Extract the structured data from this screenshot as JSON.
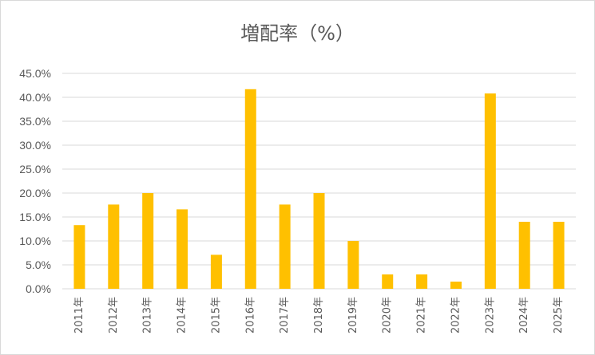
{
  "chart_data": {
    "type": "bar",
    "title": "増配率（%）",
    "categories": [
      "2011年",
      "2012年",
      "2013年",
      "2014年",
      "2015年",
      "2016年",
      "2017年",
      "2018年",
      "2019年",
      "2020年",
      "2021年",
      "2022年",
      "2023年",
      "2024年",
      "2025年"
    ],
    "values": [
      13.3,
      17.6,
      20.0,
      16.6,
      7.1,
      41.7,
      17.6,
      20.0,
      10.0,
      3.0,
      3.0,
      1.5,
      40.8,
      14.0,
      14.0
    ],
    "y_ticks": [
      "0.0%",
      "5.0%",
      "10.0%",
      "15.0%",
      "20.0%",
      "25.0%",
      "30.0%",
      "35.0%",
      "40.0%",
      "45.0%"
    ],
    "ylim": [
      0,
      45
    ],
    "xlabel": "",
    "ylabel": "",
    "grid": true,
    "bar_color": "#ffc000",
    "grid_color": "#d9d9d9",
    "text_color": "#595959"
  }
}
